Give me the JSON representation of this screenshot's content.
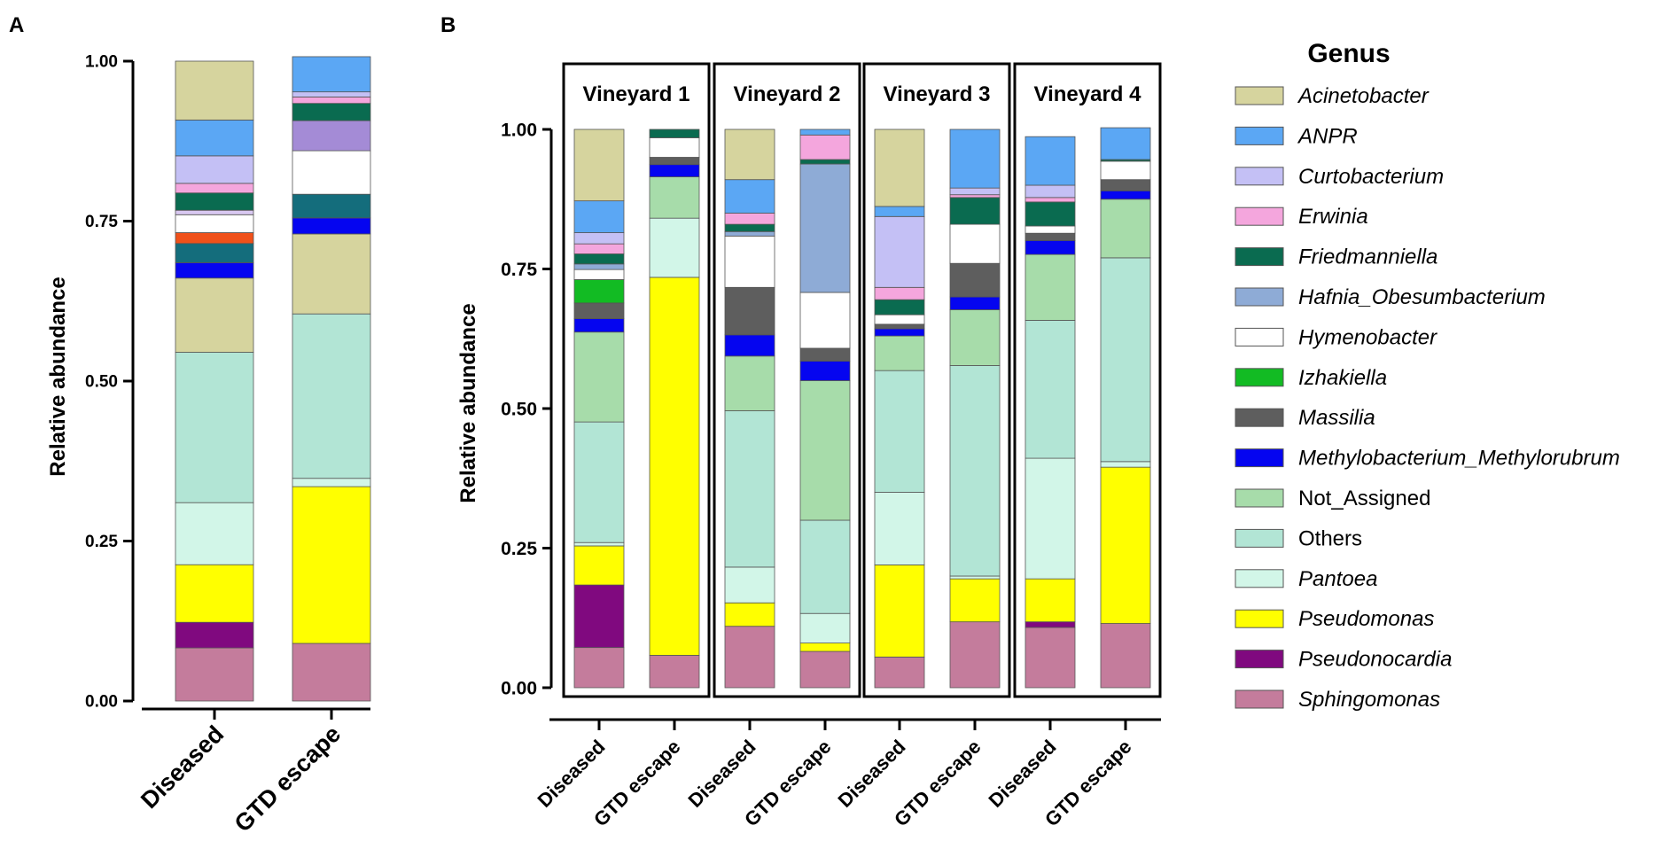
{
  "chart_data": [
    {
      "panel": "A",
      "type": "stacked-bar",
      "ylabel": "Relative abundance",
      "ylim": [
        0,
        1
      ],
      "yticks": [
        "0.00",
        "0.25",
        "0.50",
        "0.75",
        "1.00"
      ],
      "categories": [
        "Diseased",
        "GTD escape"
      ],
      "stacks": [
        [
          {
            "genus": "Sphingomonas",
            "value": 0.083
          },
          {
            "genus": "Pseudonocardia",
            "value": 0.04
          },
          {
            "genus": "Pseudomonas",
            "value": 0.09
          },
          {
            "genus": "Pantoea",
            "value": 0.097
          },
          {
            "genus": "Others",
            "value": 0.235
          },
          {
            "genus": "Acinetobacter",
            "value": 0.116
          },
          {
            "genus": "Methylobacterium_Methylorubrum",
            "value": 0.024
          },
          {
            "genus": "other-teal",
            "value": 0.03
          },
          {
            "genus": "other-orange",
            "value": 0.017
          },
          {
            "genus": "Hymenobacter",
            "value": 0.028
          },
          {
            "genus": "other-lightpurple",
            "value": 0.007
          },
          {
            "genus": "Friedmanniella",
            "value": 0.027
          },
          {
            "genus": "Erwinia",
            "value": 0.015
          },
          {
            "genus": "Curtobacterium",
            "value": 0.043
          },
          {
            "genus": "ANPR",
            "value": 0.056
          },
          {
            "genus": "Acinetobacter",
            "value": 0.092
          }
        ],
        [
          {
            "genus": "Sphingomonas",
            "value": 0.09
          },
          {
            "genus": "Pseudomonas",
            "value": 0.245
          },
          {
            "genus": "Pantoea",
            "value": 0.013
          },
          {
            "genus": "Others",
            "value": 0.257
          },
          {
            "genus": "Acinetobacter",
            "value": 0.125
          },
          {
            "genus": "Methylobacterium_Methylorubrum",
            "value": 0.025
          },
          {
            "genus": "other-teal",
            "value": 0.037
          },
          {
            "genus": "Hymenobacter",
            "value": 0.068
          },
          {
            "genus": "other-purple",
            "value": 0.047
          },
          {
            "genus": "Friedmanniella",
            "value": 0.027
          },
          {
            "genus": "Erwinia",
            "value": 0.01
          },
          {
            "genus": "Curtobacterium",
            "value": 0.008
          },
          {
            "genus": "ANPR",
            "value": 0.055
          }
        ]
      ]
    },
    {
      "panel": "B",
      "type": "stacked-bar",
      "ylabel": "Relative abundance",
      "ylim": [
        0,
        1
      ],
      "yticks": [
        "0.00",
        "0.25",
        "0.50",
        "0.75",
        "1.00"
      ],
      "groups": [
        "Vineyard 1",
        "Vineyard 2",
        "Vineyard 3",
        "Vineyard 4"
      ],
      "categories": [
        "Diseased",
        "GTD escape",
        "Diseased",
        "GTD escape",
        "Diseased",
        "GTD escape",
        "Diseased",
        "GTD escape"
      ],
      "stacks": [
        [
          {
            "genus": "Sphingomonas",
            "value": 0.072
          },
          {
            "genus": "Pseudonocardia",
            "value": 0.112
          },
          {
            "genus": "Pseudomonas",
            "value": 0.07
          },
          {
            "genus": "Pantoea",
            "value": 0.006
          },
          {
            "genus": "Others",
            "value": 0.216
          },
          {
            "genus": "Not_Assigned",
            "value": 0.161
          },
          {
            "genus": "Methylobacterium_Methylorubrum",
            "value": 0.024
          },
          {
            "genus": "Massilia",
            "value": 0.028
          },
          {
            "genus": "Izhakiella",
            "value": 0.042
          },
          {
            "genus": "Hymenobacter",
            "value": 0.018
          },
          {
            "genus": "Hafnia_Obesumbacterium",
            "value": 0.01
          },
          {
            "genus": "Friedmanniella",
            "value": 0.018
          },
          {
            "genus": "Erwinia",
            "value": 0.018
          },
          {
            "genus": "Curtobacterium",
            "value": 0.02
          },
          {
            "genus": "ANPR",
            "value": 0.057
          },
          {
            "genus": "Acinetobacter",
            "value": 0.128
          }
        ],
        [
          {
            "genus": "Sphingomonas",
            "value": 0.058
          },
          {
            "genus": "Pseudomonas",
            "value": 0.677
          },
          {
            "genus": "Pantoea",
            "value": 0.106
          },
          {
            "genus": "Not_Assigned",
            "value": 0.074
          },
          {
            "genus": "Methylobacterium_Methylorubrum",
            "value": 0.022
          },
          {
            "genus": "Massilia",
            "value": 0.013
          },
          {
            "genus": "Hymenobacter",
            "value": 0.035
          },
          {
            "genus": "Friedmanniella",
            "value": 0.015
          }
        ],
        [
          {
            "genus": "Sphingomonas",
            "value": 0.11
          },
          {
            "genus": "Pseudomonas",
            "value": 0.042
          },
          {
            "genus": "Pantoea",
            "value": 0.064
          },
          {
            "genus": "Others",
            "value": 0.28
          },
          {
            "genus": "Not_Assigned",
            "value": 0.098
          },
          {
            "genus": "Methylobacterium_Methylorubrum",
            "value": 0.038
          },
          {
            "genus": "Massilia",
            "value": 0.085
          },
          {
            "genus": "Hymenobacter",
            "value": 0.092
          },
          {
            "genus": "Hafnia_Obesumbacterium",
            "value": 0.008
          },
          {
            "genus": "Friedmanniella",
            "value": 0.013
          },
          {
            "genus": "Erwinia",
            "value": 0.02
          },
          {
            "genus": "ANPR",
            "value": 0.06
          },
          {
            "genus": "Acinetobacter",
            "value": 0.09
          }
        ],
        [
          {
            "genus": "Sphingomonas",
            "value": 0.065
          },
          {
            "genus": "Pseudomonas",
            "value": 0.015
          },
          {
            "genus": "Pantoea",
            "value": 0.053
          },
          {
            "genus": "Others",
            "value": 0.167
          },
          {
            "genus": "Not_Assigned",
            "value": 0.25
          },
          {
            "genus": "Methylobacterium_Methylorubrum",
            "value": 0.035
          },
          {
            "genus": "Massilia",
            "value": 0.023
          },
          {
            "genus": "Hymenobacter",
            "value": 0.1
          },
          {
            "genus": "Hafnia_Obesumbacterium",
            "value": 0.23
          },
          {
            "genus": "Friedmanniella",
            "value": 0.008
          },
          {
            "genus": "Erwinia",
            "value": 0.044
          },
          {
            "genus": "ANPR",
            "value": 0.01
          }
        ],
        [
          {
            "genus": "Sphingomonas",
            "value": 0.055
          },
          {
            "genus": "Pseudomonas",
            "value": 0.165
          },
          {
            "genus": "Pantoea",
            "value": 0.13
          },
          {
            "genus": "Others",
            "value": 0.218
          },
          {
            "genus": "Not_Assigned",
            "value": 0.062
          },
          {
            "genus": "Methylobacterium_Methylorubrum",
            "value": 0.013
          },
          {
            "genus": "Massilia",
            "value": 0.008
          },
          {
            "genus": "Hymenobacter",
            "value": 0.017
          },
          {
            "genus": "Friedmanniella",
            "value": 0.027
          },
          {
            "genus": "Erwinia",
            "value": 0.022
          },
          {
            "genus": "Curtobacterium",
            "value": 0.127
          },
          {
            "genus": "ANPR",
            "value": 0.018
          },
          {
            "genus": "Acinetobacter",
            "value": 0.138
          }
        ],
        [
          {
            "genus": "Sphingomonas",
            "value": 0.118
          },
          {
            "genus": "Pseudomonas",
            "value": 0.077
          },
          {
            "genus": "Pantoea",
            "value": 0.005
          },
          {
            "genus": "Others",
            "value": 0.377
          },
          {
            "genus": "Not_Assigned",
            "value": 0.1
          },
          {
            "genus": "Methylobacterium_Methylorubrum",
            "value": 0.023
          },
          {
            "genus": "Massilia",
            "value": 0.06
          },
          {
            "genus": "Hymenobacter",
            "value": 0.07
          },
          {
            "genus": "Friedmanniella",
            "value": 0.048
          },
          {
            "genus": "Erwinia",
            "value": 0.005
          },
          {
            "genus": "Curtobacterium",
            "value": 0.012
          },
          {
            "genus": "ANPR",
            "value": 0.105
          }
        ],
        [
          {
            "genus": "Sphingomonas",
            "value": 0.108
          },
          {
            "genus": "Pseudonocardia",
            "value": 0.01
          },
          {
            "genus": "Pseudomonas",
            "value": 0.077
          },
          {
            "genus": "Pantoea",
            "value": 0.216
          },
          {
            "genus": "Others",
            "value": 0.247
          },
          {
            "genus": "Not_Assigned",
            "value": 0.118
          },
          {
            "genus": "Methylobacterium_Methylorubrum",
            "value": 0.025
          },
          {
            "genus": "Massilia",
            "value": 0.013
          },
          {
            "genus": "Hymenobacter",
            "value": 0.013
          },
          {
            "genus": "Friedmanniella",
            "value": 0.043
          },
          {
            "genus": "Erwinia",
            "value": 0.008
          },
          {
            "genus": "Curtobacterium",
            "value": 0.022
          },
          {
            "genus": "ANPR",
            "value": 0.087
          }
        ],
        [
          {
            "genus": "Sphingomonas",
            "value": 0.115
          },
          {
            "genus": "Pseudomonas",
            "value": 0.28
          },
          {
            "genus": "Pantoea",
            "value": 0.01
          },
          {
            "genus": "Others",
            "value": 0.365
          },
          {
            "genus": "Not_Assigned",
            "value": 0.105
          },
          {
            "genus": "Methylobacterium_Methylorubrum",
            "value": 0.015
          },
          {
            "genus": "Massilia",
            "value": 0.02
          },
          {
            "genus": "Hymenobacter",
            "value": 0.033
          },
          {
            "genus": "Friedmanniella",
            "value": 0.003
          },
          {
            "genus": "ANPR",
            "value": 0.057
          }
        ]
      ]
    }
  ],
  "panel_labels": [
    "A",
    "B"
  ],
  "legend": {
    "title": "Genus",
    "items": [
      {
        "label": "Acinetobacter",
        "color": "#d6d49e",
        "italic": true
      },
      {
        "label": "ANPR",
        "color": "#5ba7f4",
        "italic": true
      },
      {
        "label": "Curtobacterium",
        "color": "#c4c0f5",
        "italic": true
      },
      {
        "label": "Erwinia",
        "color": "#f4a6dd",
        "italic": true
      },
      {
        "label": "Friedmanniella",
        "color": "#0a6b50",
        "italic": true
      },
      {
        "label": "Hafnia_Obesumbacterium",
        "color": "#8eabd6",
        "italic": true
      },
      {
        "label": "Hymenobacter",
        "color": "#ffffff",
        "italic": true
      },
      {
        "label": "Izhakiella",
        "color": "#12bb23",
        "italic": true
      },
      {
        "label": "Massilia",
        "color": "#5e5e5e",
        "italic": true
      },
      {
        "label": "Methylobacterium_Methylorubrum",
        "color": "#0505f0",
        "italic": true
      },
      {
        "label": "Not_Assigned",
        "color": "#a7dcaa",
        "italic": false
      },
      {
        "label": "Others",
        "color": "#b2e5d5",
        "italic": false
      },
      {
        "label": "Pantoea",
        "color": "#d2f6e8",
        "italic": true
      },
      {
        "label": "Pseudomonas",
        "color": "#ffff00",
        "italic": true
      },
      {
        "label": "Pseudonocardia",
        "color": "#80097f",
        "italic": true
      },
      {
        "label": "Sphingomonas",
        "color": "#c47c9c",
        "italic": true
      }
    ]
  },
  "extra_colors": {
    "other-teal": "#146d7c",
    "other-orange": "#f0511a",
    "other-purple": "#a48bd6",
    "other-lightpurple": "#d9c8f1",
    "Methylobacterium_Methylorubrum_A": "#1f4fe0"
  }
}
